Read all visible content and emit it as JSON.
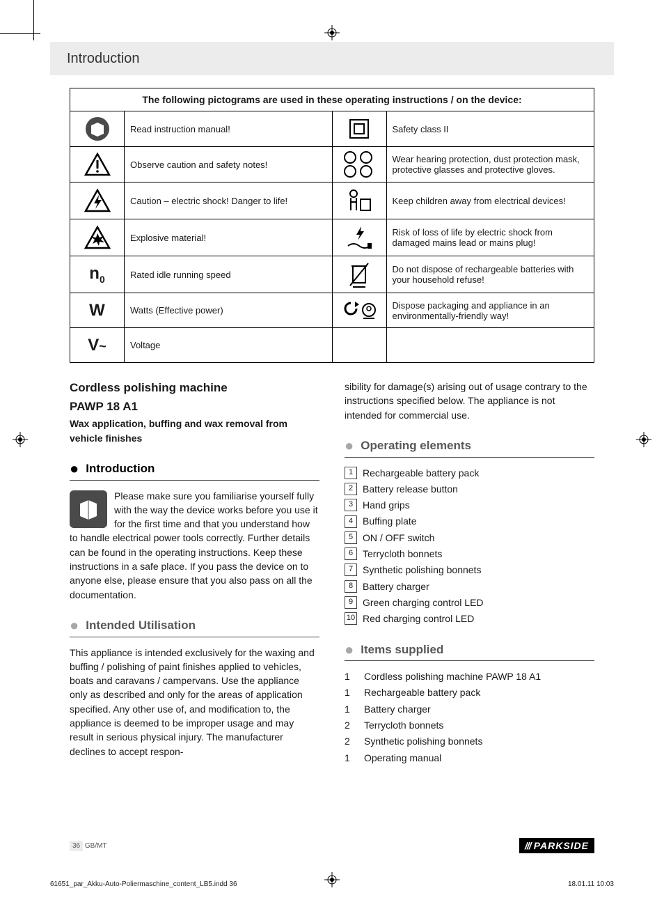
{
  "header": {
    "title": "Introduction"
  },
  "picto_table": {
    "header": "The following pictograms are used in these operating instructions / on the device:",
    "rows_left": [
      {
        "icon": "manual-icon",
        "text": "Read instruction manual!"
      },
      {
        "icon": "warning-triangle-icon",
        "text": "Observe caution and safety notes!"
      },
      {
        "icon": "electric-shock-icon",
        "text": "Caution – electric shock! Danger to life!"
      },
      {
        "icon": "explosion-icon",
        "text": "Explosive material!"
      },
      {
        "icon": "n0-symbol",
        "text": "Rated idle running speed"
      },
      {
        "icon": "watt-symbol",
        "text": "Watts (Effective power)"
      },
      {
        "icon": "voltage-symbol",
        "text": "Voltage"
      }
    ],
    "rows_right": [
      {
        "icon": "class2-icon",
        "text": "Safety class II"
      },
      {
        "icon": "ppe-icons",
        "text": "Wear hearing protection, dust protection mask, protective glasses and protective gloves."
      },
      {
        "icon": "keep-children-away-icon",
        "text": "Keep children away from electrical devices!"
      },
      {
        "icon": "damaged-lead-icon",
        "text": "Risk of loss of life by electric shock from damaged mains lead or mains plug!"
      },
      {
        "icon": "no-bin-icon",
        "text": "Do not dispose of rechargeable batteries with your household refuse!"
      },
      {
        "icon": "recycle-icon",
        "text": "Dispose packaging and appliance in an environmentally-friendly way!"
      }
    ]
  },
  "product": {
    "title_line1": "Cordless polishing machine",
    "title_line2": "PAWP 18 A1",
    "subtitle": "Wax application, buffing and wax removal from vehicle finishes"
  },
  "sections": {
    "intro": {
      "title": "Introduction",
      "para": "Please make sure you familiarise yourself fully with the way the device works before you use it for the first time and that you understand how to handle electrical power tools correctly. Further details can be found in the operating instructions. Keep these instructions in a safe place. If you pass the device on to anyone else, please ensure that you also pass on all the documentation."
    },
    "intended": {
      "title": "Intended Utilisation",
      "para": "This appliance is intended exclusively for the waxing and buffing / polishing of paint finishes applied to vehicles, boats and caravans / campervans. Use the appliance only as described and only for the areas of application specified. Any other use of, and modification to, the appliance is deemed to be improper usage and may result in serious physical injury. The manufacturer declines to accept respon-"
    },
    "intended_cont": "sibility for damage(s) arising out of usage contrary to the instructions specified below. The appliance is not intended for commercial use.",
    "operating": {
      "title": "Operating elements",
      "items": [
        "Rechargeable battery pack",
        "Battery release button",
        "Hand grips",
        "Buffing plate",
        "ON / OFF switch",
        "Terrycloth bonnets",
        "Synthetic polishing bonnets",
        "Battery charger",
        "Green charging control LED",
        "Red charging control LED"
      ]
    },
    "items_supplied": {
      "title": "Items supplied",
      "items": [
        {
          "qty": "1",
          "name": "Cordless polishing machine PAWP 18 A1"
        },
        {
          "qty": "1",
          "name": "Rechargeable battery pack"
        },
        {
          "qty": "1",
          "name": "Battery charger"
        },
        {
          "qty": "2",
          "name": "Terrycloth bonnets"
        },
        {
          "qty": "2",
          "name": "Synthetic polishing bonnets"
        },
        {
          "qty": "1",
          "name": "Operating manual"
        }
      ]
    }
  },
  "footer": {
    "page_num": "36",
    "locale": "GB/MT",
    "brand": "PARKSIDE",
    "indd": "61651_par_Akku-Auto-Poliermaschine_content_LB5.indd   36",
    "timestamp": "18.01.11   10:03"
  },
  "symbols": {
    "n0_main": "n",
    "n0_sub": "0",
    "watt": "W",
    "volt": "V",
    "tilde": "~"
  }
}
